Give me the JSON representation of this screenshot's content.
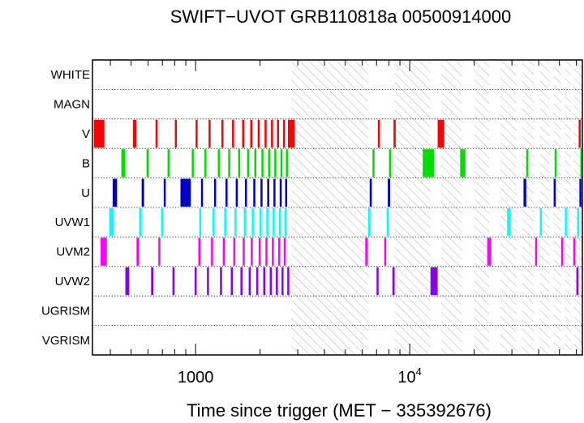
{
  "chart_data": {
    "type": "timeline",
    "title": "SWIFT−UVOT GRB110818a 00500914000",
    "xlabel": "Time since trigger (MET − 335392676)",
    "xscale": "log",
    "xlim": [
      330,
      64000
    ],
    "xticks": [
      {
        "value": 1000,
        "label": "1000",
        "sup": ""
      },
      {
        "value": 10000,
        "label": "10",
        "sup": "4"
      }
    ],
    "rows": [
      "WHITE",
      "MAGN",
      "V",
      "B",
      "U",
      "UVW1",
      "UVM2",
      "UVW2",
      "UGRISM",
      "VGRISM"
    ],
    "grid": "dotted",
    "hatched_intervals": [
      [
        2800,
        6400
      ],
      [
        8500,
        12500
      ],
      [
        14000,
        17500
      ],
      [
        20000,
        23500
      ],
      [
        26500,
        31500
      ],
      [
        33500,
        38000
      ],
      [
        40500,
        45000
      ],
      [
        47000,
        51000
      ],
      [
        53000,
        56500
      ],
      [
        58500,
        64000
      ]
    ],
    "series": [
      {
        "filter": "V",
        "color": "#ff0000",
        "exposures": [
          [
            335,
            375
          ],
          [
            510,
            530
          ],
          [
            650,
            665
          ],
          [
            800,
            815
          ],
          [
            1000,
            1015
          ],
          [
            1150,
            1165
          ],
          [
            1320,
            1335
          ],
          [
            1480,
            1495
          ],
          [
            1650,
            1665
          ],
          [
            1800,
            1815
          ],
          [
            1950,
            1965
          ],
          [
            2100,
            2115
          ],
          [
            2250,
            2265
          ],
          [
            2400,
            2415
          ],
          [
            2560,
            2575
          ],
          [
            2700,
            2900
          ],
          [
            7100,
            7250
          ],
          [
            8400,
            8600
          ],
          [
            13500,
            14500
          ],
          [
            61500,
            62500
          ]
        ]
      },
      {
        "filter": "B",
        "color": "#00dd00",
        "exposures": [
          [
            450,
            470
          ],
          [
            590,
            605
          ],
          [
            740,
            755
          ],
          [
            960,
            975
          ],
          [
            1100,
            1115
          ],
          [
            1270,
            1285
          ],
          [
            1420,
            1435
          ],
          [
            1580,
            1595
          ],
          [
            1740,
            1755
          ],
          [
            1880,
            1895
          ],
          [
            2030,
            2045
          ],
          [
            2180,
            2195
          ],
          [
            2330,
            2345
          ],
          [
            2490,
            2505
          ],
          [
            2640,
            2655
          ],
          [
            6700,
            6850
          ],
          [
            8000,
            8200
          ],
          [
            11500,
            13000
          ],
          [
            17200,
            18200
          ],
          [
            35000,
            35400
          ],
          [
            47500,
            48300
          ],
          [
            63500,
            64000
          ]
        ]
      },
      {
        "filter": "U",
        "color": "#0000cc",
        "exposures": [
          [
            410,
            430
          ],
          [
            560,
            575
          ],
          [
            710,
            725
          ],
          [
            850,
            950
          ],
          [
            1060,
            1075
          ],
          [
            1220,
            1235
          ],
          [
            1380,
            1395
          ],
          [
            1540,
            1555
          ],
          [
            1700,
            1715
          ],
          [
            1860,
            1875
          ],
          [
            2010,
            2025
          ],
          [
            2160,
            2175
          ],
          [
            2310,
            2325
          ],
          [
            2470,
            2485
          ],
          [
            2620,
            2635
          ],
          [
            6500,
            6650
          ],
          [
            7900,
            8100
          ],
          [
            34000,
            35000
          ],
          [
            47000,
            47800
          ],
          [
            62000,
            62600
          ]
        ]
      },
      {
        "filter": "UVW1",
        "color": "#00ffff",
        "exposures": [
          [
            395,
            415
          ],
          [
            545,
            560
          ],
          [
            690,
            705
          ],
          [
            1040,
            1055
          ],
          [
            1200,
            1215
          ],
          [
            1360,
            1375
          ],
          [
            1520,
            1535
          ],
          [
            1680,
            1695
          ],
          [
            1830,
            1845
          ],
          [
            1990,
            2005
          ],
          [
            2140,
            2155
          ],
          [
            2290,
            2305
          ],
          [
            2450,
            2465
          ],
          [
            2600,
            2615
          ],
          [
            6400,
            6550
          ],
          [
            7800,
            7950
          ],
          [
            28500,
            29500
          ],
          [
            40500,
            41200
          ],
          [
            53000,
            53700
          ],
          [
            60500,
            61300
          ]
        ]
      },
      {
        "filter": "UVM2",
        "color": "#ff00ff",
        "exposures": [
          [
            360,
            385
          ],
          [
            530,
            545
          ],
          [
            670,
            685
          ],
          [
            1030,
            1045
          ],
          [
            1180,
            1195
          ],
          [
            1340,
            1355
          ],
          [
            1500,
            1515
          ],
          [
            1660,
            1675
          ],
          [
            1810,
            1825
          ],
          [
            1970,
            1985
          ],
          [
            2120,
            2135
          ],
          [
            2270,
            2285
          ],
          [
            2430,
            2445
          ],
          [
            2580,
            2595
          ],
          [
            6200,
            6350
          ],
          [
            7600,
            7750
          ],
          [
            23000,
            24000
          ],
          [
            38500,
            39200
          ],
          [
            51000,
            51700
          ],
          [
            58000,
            58800
          ]
        ]
      },
      {
        "filter": "UVW2",
        "color": "#8800ee",
        "exposures": [
          [
            470,
            490
          ],
          [
            620,
            635
          ],
          [
            780,
            795
          ],
          [
            990,
            1005
          ],
          [
            1130,
            1145
          ],
          [
            1300,
            1315
          ],
          [
            1460,
            1475
          ],
          [
            1620,
            1635
          ],
          [
            1770,
            1785
          ],
          [
            1920,
            1935
          ],
          [
            2070,
            2085
          ],
          [
            2220,
            2235
          ],
          [
            2370,
            2385
          ],
          [
            2520,
            2535
          ],
          [
            2680,
            2695
          ],
          [
            7000,
            7150
          ],
          [
            8300,
            8500
          ],
          [
            12500,
            13500
          ],
          [
            60000,
            60400
          ]
        ]
      }
    ]
  }
}
